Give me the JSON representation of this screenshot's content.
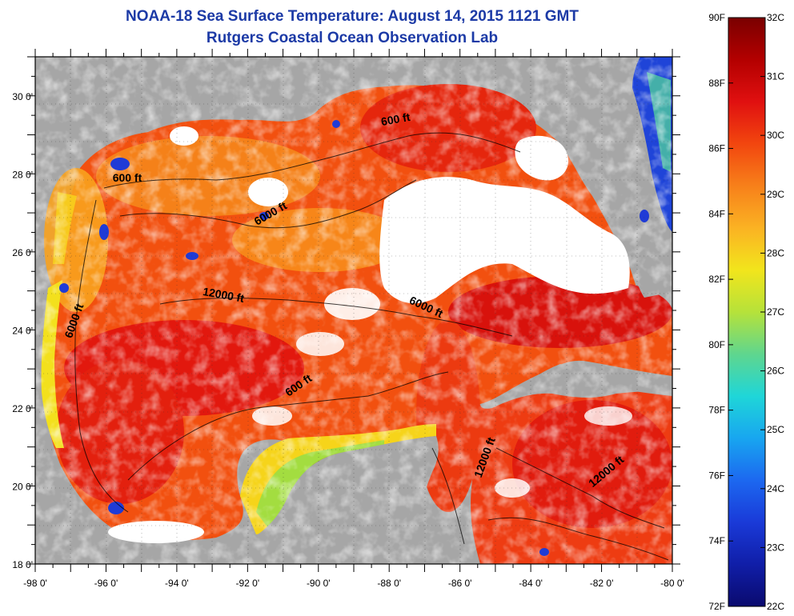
{
  "title": "NOAA-18 Sea Surface Temperature:  August 14, 2015 1121 GMT",
  "subtitle": "Rutgers Coastal Ocean Observation Lab",
  "map": {
    "lon_range": [
      -98,
      -80
    ],
    "lat_range": [
      18,
      31
    ],
    "lon_labels": [
      "-98 0'",
      "-96 0'",
      "-94 0'",
      "-92 0'",
      "-90 0'",
      "-88 0'",
      "-86 0'",
      "-84 0'",
      "-82 0'",
      "-80 0'"
    ],
    "lat_labels": [
      "18 0'",
      "20 0'",
      "22 0'",
      "24 0'",
      "26 0'",
      "28 0'",
      "30 0'"
    ],
    "land_color": "#a6a6a6",
    "cloud_color": "#ffffff",
    "sst_colors": {
      "warm": "#e41a0e",
      "mid": "#f25a12",
      "cool": "#f9a21d",
      "coast": "#f5e31a",
      "cold": "#1f3bd6"
    },
    "contour_labels": [
      {
        "text": "600 ft",
        "lon": -95.4,
        "lat": 27.8,
        "angle": 0
      },
      {
        "text": "600 ft",
        "lon": -87.8,
        "lat": 29.3,
        "angle": -10
      },
      {
        "text": "6000 ft",
        "lon": -91.3,
        "lat": 26.9,
        "angle": -30
      },
      {
        "text": "12000 ft",
        "lon": -92.7,
        "lat": 24.8,
        "angle": 10
      },
      {
        "text": "6000 ft",
        "lon": -87.0,
        "lat": 24.5,
        "angle": 25
      },
      {
        "text": "6000 ft",
        "lon": -96.8,
        "lat": 24.2,
        "angle": -70
      },
      {
        "text": "600 ft",
        "lon": -90.5,
        "lat": 22.5,
        "angle": -35
      },
      {
        "text": "12000 ft",
        "lon": -85.2,
        "lat": 20.7,
        "angle": -70
      },
      {
        "text": "12000 ft",
        "lon": -81.8,
        "lat": 20.3,
        "angle": -40
      }
    ]
  },
  "colorbar": {
    "f_labels": [
      "90F",
      "88F",
      "86F",
      "84F",
      "82F",
      "80F",
      "78F",
      "76F",
      "74F",
      "72F"
    ],
    "c_labels": [
      "32C",
      "31C",
      "30C",
      "29C",
      "28C",
      "27C",
      "26C",
      "25C",
      "24C",
      "23C",
      "22C"
    ],
    "stops": [
      "#7a0000",
      "#b30000",
      "#e01010",
      "#f2460f",
      "#f7801a",
      "#fbb223",
      "#f2e51c",
      "#b6e23a",
      "#5fd68e",
      "#1fd6d8",
      "#18a6f0",
      "#1c68f0",
      "#1a3ad8",
      "#101ea8",
      "#0a0a6e"
    ]
  }
}
